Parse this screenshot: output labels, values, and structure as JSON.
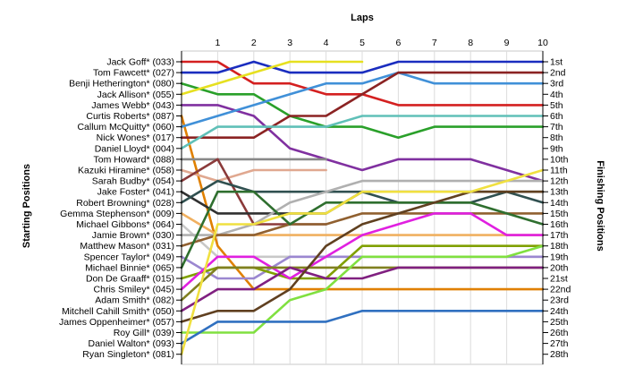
{
  "chart_data": {
    "type": "line",
    "chart_kind": "lap position chart",
    "title": "Laps",
    "left_axis_label": "Starting Positions",
    "right_axis_label": "Finishing Positions",
    "x": [
      0,
      1,
      2,
      3,
      4,
      5,
      6,
      7,
      8,
      9,
      10
    ],
    "x_tick_labels": [
      "1",
      "2",
      "3",
      "4",
      "5",
      "6",
      "7",
      "8",
      "9",
      "10"
    ],
    "grid": true,
    "y_inverted": true,
    "finishing_positions": [
      "1st",
      "2nd",
      "3rd",
      "4th",
      "5th",
      "6th",
      "7th",
      "8th",
      "9th",
      "10th",
      "11th",
      "12th",
      "13th",
      "14th",
      "15th",
      "16th",
      "17th",
      "18th",
      "19th",
      "20th",
      "21st",
      "22nd",
      "23rd",
      "24th",
      "25th",
      "26th",
      "27th",
      "28th"
    ],
    "series": [
      {
        "name": "Jack Goff* (033)",
        "color": "#d42020",
        "values": [
          1,
          1,
          3,
          3,
          4,
          4,
          5,
          5,
          5,
          5,
          5
        ]
      },
      {
        "name": "Tom Fawcett* (027)",
        "color": "#1a2dbf",
        "values": [
          2,
          2,
          1,
          2,
          2,
          2,
          1,
          1,
          1,
          1,
          1
        ]
      },
      {
        "name": "Benji Hetherington* (080)",
        "color": "#2aa02a",
        "values": [
          3,
          4,
          4,
          6,
          7,
          7,
          8,
          7,
          7,
          7,
          7
        ]
      },
      {
        "name": "Jack Allison* (055)",
        "color": "#e6e020",
        "values": [
          4,
          3,
          2,
          1,
          1,
          1,
          null,
          null,
          null,
          null,
          null
        ]
      },
      {
        "name": "James Webb* (043)",
        "color": "#8030a0",
        "values": [
          5,
          5,
          6,
          9,
          10,
          11,
          10,
          10,
          10,
          11,
          12
        ]
      },
      {
        "name": "Curtis Roberts* (087)",
        "color": "#e08000",
        "values": [
          6,
          18,
          22,
          22,
          22,
          22,
          22,
          22,
          22,
          22,
          22
        ]
      },
      {
        "name": "Callum McQuitty* (060)",
        "color": "#4090d8",
        "values": [
          7,
          6,
          5,
          4,
          3,
          3,
          2,
          3,
          3,
          3,
          3
        ]
      },
      {
        "name": "Nick Wones* (017)",
        "color": "#8b2323",
        "values": [
          8,
          8,
          8,
          6,
          6,
          4,
          2,
          2,
          2,
          2,
          2
        ]
      },
      {
        "name": "Daniel Lloyd* (004)",
        "color": "#60c0b8",
        "values": [
          9,
          7,
          7,
          7,
          7,
          6,
          6,
          6,
          6,
          6,
          6
        ]
      },
      {
        "name": "Tom Howard* (088)",
        "color": "#888888",
        "values": [
          10,
          10,
          10,
          10,
          10,
          null,
          null,
          null,
          null,
          null,
          null
        ]
      },
      {
        "name": "Kazuki Hiramine* (058)",
        "color": "#e0a890",
        "values": [
          11,
          12,
          11,
          11,
          11,
          null,
          null,
          null,
          null,
          null,
          null
        ]
      },
      {
        "name": "Sarah Budby* (054)",
        "color": "#8b3a3a",
        "values": [
          12,
          10,
          16,
          16,
          16,
          null,
          null,
          null,
          null,
          null,
          null
        ]
      },
      {
        "name": "Jake Foster* (041)",
        "color": "#303030",
        "values": [
          13,
          15,
          15,
          15,
          15,
          13,
          13,
          13,
          13,
          13,
          13
        ]
      },
      {
        "name": "Robert Browning* (028)",
        "color": "#305050",
        "values": [
          14,
          12,
          13,
          13,
          13,
          13,
          14,
          14,
          14,
          13,
          14
        ]
      },
      {
        "name": "Gemma Stephenson* (009)",
        "color": "#f0b060",
        "values": [
          15,
          17,
          17,
          17,
          17,
          17,
          17,
          17,
          17,
          17,
          17
        ]
      },
      {
        "name": "Michael Gibbons* (064)",
        "color": "#c8c8c8",
        "values": [
          16,
          19,
          19,
          19,
          19,
          19,
          19,
          19,
          19,
          19,
          19
        ]
      },
      {
        "name": "Jamie Brown* (030)",
        "color": "#b0b0b0",
        "values": [
          17,
          17,
          16,
          14,
          13,
          12,
          12,
          12,
          12,
          12,
          12
        ]
      },
      {
        "name": "Matthew Mason* (031)",
        "color": "#906030",
        "values": [
          18,
          17,
          17,
          16,
          16,
          15,
          15,
          15,
          15,
          15,
          15
        ]
      },
      {
        "name": "Spencer Taylor* (049)",
        "color": "#9b87d0",
        "values": [
          19,
          21,
          21,
          19,
          19,
          19,
          19,
          19,
          19,
          19,
          19
        ]
      },
      {
        "name": "Michael Binnie* (065)",
        "color": "#2f6f2f",
        "values": [
          20,
          13,
          13,
          16,
          14,
          14,
          14,
          14,
          14,
          15,
          16
        ]
      },
      {
        "name": "Don De Graaff* (015)",
        "color": "#80a000",
        "values": [
          21,
          20,
          20,
          21,
          21,
          18,
          18,
          18,
          18,
          18,
          18
        ]
      },
      {
        "name": "Chris Smiley* (045)",
        "color": "#e020e0",
        "values": [
          22,
          19,
          19,
          21,
          19,
          17,
          16,
          15,
          15,
          17,
          17
        ]
      },
      {
        "name": "Adam Smith* (082)",
        "color": "#808020",
        "values": [
          23,
          20,
          20,
          20,
          20,
          20,
          20,
          20,
          20,
          20,
          20
        ]
      },
      {
        "name": "Mitchell Cahill Smith* (050)",
        "color": "#802080",
        "values": [
          24,
          22,
          22,
          20,
          21,
          21,
          20,
          20,
          20,
          20,
          20
        ]
      },
      {
        "name": "James Oppenheimer* (057)",
        "color": "#604020",
        "values": [
          25,
          24,
          24,
          22,
          18,
          16,
          15,
          14,
          13,
          13,
          13
        ]
      },
      {
        "name": "Roy Gill* (039)",
        "color": "#80e040",
        "values": [
          26,
          26,
          26,
          23,
          22,
          19,
          19,
          19,
          19,
          19,
          18
        ]
      },
      {
        "name": "Daniel Walton* (093)",
        "color": "#3070c0",
        "values": [
          27,
          25,
          25,
          25,
          25,
          24,
          24,
          24,
          24,
          24,
          24
        ]
      },
      {
        "name": "Ryan Singleton* (081)",
        "color": "#f0e040",
        "values": [
          28,
          16,
          16,
          15,
          15,
          13,
          13,
          13,
          13,
          12,
          11
        ]
      }
    ]
  }
}
